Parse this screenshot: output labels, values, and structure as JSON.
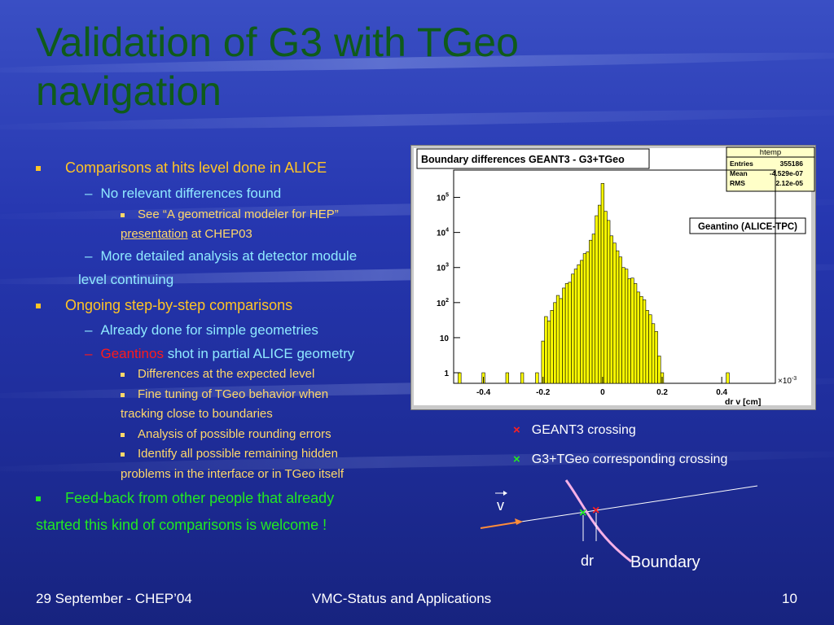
{
  "slide": {
    "title": "Validation of G3 with TGeo navigation"
  },
  "bullets": {
    "b1": "Comparisons at hits level done in ALICE",
    "b1_1": "No relevant differences found",
    "b1_1_1_a": "See “A geometrical modeler for HEP”",
    "b1_1_1_link": "presentation",
    "b1_1_1_b": " at CHEP03",
    "b1_2_a": "More detailed analysis at detector module",
    "b1_2_b": "level continuing",
    "b2": "Ongoing step-by-step comparisons",
    "b2_1": "Already done for simple geometries",
    "b2_2_red": "Geantinos",
    "b2_2_rest": " shot in partial ALICE geometry",
    "b2_2_1": "Differences at the expected level",
    "b2_2_2_a": "Fine tuning of TGeo behavior when",
    "b2_2_2_b": "tracking close to boundaries",
    "b2_2_3": "Analysis of possible rounding errors",
    "b2_2_4_a": "Identify all possible remaining hidden",
    "b2_2_4_b": "problems in the interface or in TGeo itself",
    "b3_a": "Feed-back from other people that already",
    "b3_b": "started this kind of comparisons is welcome !"
  },
  "chart_data": {
    "type": "bar",
    "title": "Boundary differences GEANT3 - G3+TGeo",
    "annotation": "Geantino (ALICE-TPC)",
    "stats": {
      "name": "htemp",
      "rows": [
        {
          "label": "Entries",
          "value": "355186"
        },
        {
          "label": "Mean",
          "value": "-4.529e-07"
        },
        {
          "label": "RMS",
          "value": "2.12e-05"
        }
      ]
    },
    "xlabel": "dr v  [cm]",
    "x_multiplier": "×10^-3",
    "x_ticks": [
      "-0.4",
      "-0.2",
      "0",
      "0.2",
      "0.4"
    ],
    "xlim": [
      -0.5,
      0.58
    ],
    "y_scale": "log",
    "ylim": [
      0.5,
      600000
    ],
    "y_ticks": [
      {
        "value": 1,
        "label": "1"
      },
      {
        "value": 10,
        "label": "10"
      },
      {
        "value": 100,
        "label": "10^2"
      },
      {
        "value": 1000,
        "label": "10^3"
      },
      {
        "value": 10000,
        "label": "10^4"
      },
      {
        "value": 100000,
        "label": "10^5"
      }
    ],
    "bar_color": "#ffff00",
    "bin_width": 0.01,
    "histogram": [
      {
        "x": -0.48,
        "count": 1
      },
      {
        "x": -0.4,
        "count": 1
      },
      {
        "x": -0.32,
        "count": 1
      },
      {
        "x": -0.27,
        "count": 1
      },
      {
        "x": -0.22,
        "count": 1
      },
      {
        "x": -0.2,
        "count": 8
      },
      {
        "x": -0.19,
        "count": 40
      },
      {
        "x": -0.18,
        "count": 30
      },
      {
        "x": -0.17,
        "count": 60
      },
      {
        "x": -0.16,
        "count": 100
      },
      {
        "x": -0.15,
        "count": 160
      },
      {
        "x": -0.14,
        "count": 130
      },
      {
        "x": -0.13,
        "count": 260
      },
      {
        "x": -0.12,
        "count": 350
      },
      {
        "x": -0.11,
        "count": 380
      },
      {
        "x": -0.1,
        "count": 650
      },
      {
        "x": -0.09,
        "count": 900
      },
      {
        "x": -0.08,
        "count": 1200
      },
      {
        "x": -0.07,
        "count": 1600
      },
      {
        "x": -0.06,
        "count": 2500
      },
      {
        "x": -0.05,
        "count": 2800
      },
      {
        "x": -0.04,
        "count": 6000
      },
      {
        "x": -0.03,
        "count": 9000
      },
      {
        "x": -0.02,
        "count": 30000
      },
      {
        "x": -0.01,
        "count": 60000
      },
      {
        "x": 0.0,
        "count": 250000
      },
      {
        "x": 0.01,
        "count": 40000
      },
      {
        "x": 0.02,
        "count": 22000
      },
      {
        "x": 0.03,
        "count": 8000
      },
      {
        "x": 0.04,
        "count": 5000
      },
      {
        "x": 0.05,
        "count": 3000
      },
      {
        "x": 0.06,
        "count": 2000
      },
      {
        "x": 0.07,
        "count": 1000
      },
      {
        "x": 0.08,
        "count": 900
      },
      {
        "x": 0.09,
        "count": 480
      },
      {
        "x": 0.1,
        "count": 500
      },
      {
        "x": 0.11,
        "count": 350
      },
      {
        "x": 0.12,
        "count": 200
      },
      {
        "x": 0.13,
        "count": 150
      },
      {
        "x": 0.14,
        "count": 120
      },
      {
        "x": 0.15,
        "count": 60
      },
      {
        "x": 0.16,
        "count": 45
      },
      {
        "x": 0.17,
        "count": 25
      },
      {
        "x": 0.18,
        "count": 15
      },
      {
        "x": 0.19,
        "count": 3
      },
      {
        "x": 0.2,
        "count": 1
      },
      {
        "x": 0.42,
        "count": 1
      }
    ]
  },
  "legend": {
    "geant3_marker": "×",
    "geant3_color": "#ff2020",
    "geant3_label": "GEANT3 crossing",
    "g3tgeo_marker": "×",
    "g3tgeo_color": "#22e822",
    "g3tgeo_label": "G3+TGeo corresponding crossing"
  },
  "diagram": {
    "vector_label": "v",
    "dr_label": "dr",
    "boundary_label": "Boundary",
    "line_color": "#ffffff",
    "boundary_color": "#f5b0e6",
    "arrow_color": "#ff8c3a"
  },
  "footer": {
    "left": "29 September - CHEP’04",
    "center": "VMC-Status and Applications",
    "page": "10"
  }
}
